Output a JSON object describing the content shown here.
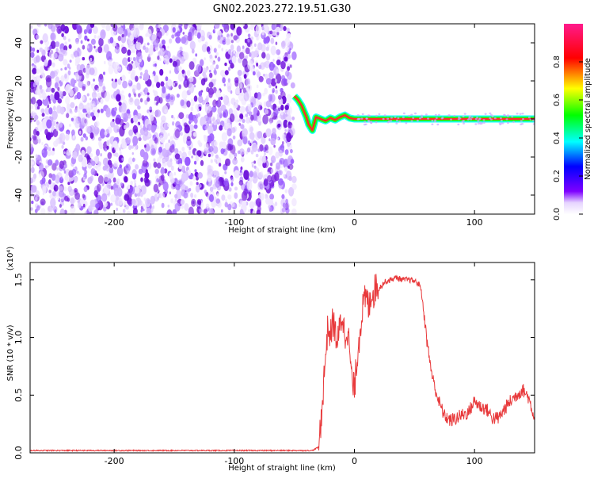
{
  "title": "GN02.2023.272.19.51.G30",
  "colors": {
    "snr_line": "#e8393b",
    "spectrogram_noise": "#7a1fe0",
    "trace_core": "#ff2b2b",
    "trace_edge": "#1aff1a"
  },
  "chart_data": [
    {
      "type": "heatmap",
      "title": "GN02.2023.272.19.51.G30",
      "xlabel": "Height of straight line (km)",
      "ylabel": "Frequency (Hz)",
      "xlim": [
        -270,
        150
      ],
      "ylim": [
        -50,
        50
      ],
      "xticks": [
        -200,
        -100,
        0,
        100
      ],
      "yticks": [
        -40,
        -20,
        0,
        20,
        40
      ],
      "xtick_labels": [
        "-200",
        "-100",
        "0",
        "100"
      ],
      "ytick_labels": [
        "-40",
        "-20",
        "0",
        "20",
        "40"
      ],
      "noise_region_x": [
        -270,
        -50
      ],
      "trace": {
        "name": "frequency trace",
        "x": [
          -50,
          -47,
          -44,
          -42,
          -40,
          -38,
          -35,
          -32,
          -28,
          -24,
          -20,
          -16,
          -12,
          -8,
          -4,
          0,
          20,
          50,
          80,
          110,
          150
        ],
        "y": [
          12,
          10,
          7,
          4,
          1,
          -3,
          -6,
          1,
          0,
          -1,
          0.5,
          -0.5,
          1,
          2,
          0.5,
          0,
          0,
          0,
          0,
          0,
          0
        ]
      },
      "colorbar": {
        "label": "Normalized spectral amplitude",
        "range": [
          0,
          1
        ],
        "ticks": [
          0.0,
          0.2,
          0.4,
          0.6,
          0.8
        ],
        "tick_labels": [
          "0.0",
          "0.2",
          "0.4",
          "0.6",
          "0.8"
        ],
        "colormap": [
          "#ffffff",
          "#7e00ff",
          "#0000ff",
          "#00ffff",
          "#00ff00",
          "#ffff00",
          "#ff0000",
          "#ff0080"
        ]
      },
      "grid": false,
      "legend": "none"
    },
    {
      "type": "line",
      "xlabel": "Height of straight line (km)",
      "ylabel": "SNR (10 * v/v)",
      "scale_label": "(x10⁴)",
      "xlim": [
        -270,
        150
      ],
      "ylim": [
        0,
        1.65
      ],
      "xticks": [
        -200,
        -100,
        0,
        100
      ],
      "yticks": [
        0.0,
        0.5,
        1.0,
        1.5
      ],
      "xtick_labels": [
        "-200",
        "-100",
        "0",
        "100"
      ],
      "ytick_labels": [
        "0.0",
        "0.5",
        "1.0",
        "1.5"
      ],
      "series": [
        {
          "x": [
            -270,
            -250,
            -200,
            -150,
            -100,
            -50,
            -35,
            -30,
            -28,
            -26,
            -24,
            -22,
            -20,
            -18,
            -16,
            -14,
            -12,
            -10,
            -8,
            -6,
            -4,
            -2,
            0,
            2,
            4,
            6,
            8,
            10,
            12,
            14,
            16,
            18,
            20,
            25,
            30,
            35,
            40,
            45,
            50,
            55,
            58,
            60,
            62,
            65,
            70,
            75,
            80,
            85,
            90,
            95,
            100,
            105,
            110,
            115,
            120,
            125,
            130,
            135,
            140,
            145,
            150
          ],
          "y": [
            0.02,
            0.02,
            0.02,
            0.02,
            0.02,
            0.02,
            0.02,
            0.05,
            0.25,
            0.55,
            0.85,
            1.1,
            1.0,
            1.15,
            1.05,
            0.95,
            1.1,
            1.2,
            1.0,
            1.1,
            0.9,
            0.6,
            0.55,
            0.8,
            1.0,
            1.2,
            1.3,
            1.35,
            1.25,
            1.4,
            1.38,
            1.45,
            1.42,
            1.48,
            1.5,
            1.52,
            1.5,
            1.5,
            1.49,
            1.45,
            1.2,
            1.0,
            0.85,
            0.65,
            0.45,
            0.32,
            0.28,
            0.3,
            0.33,
            0.35,
            0.45,
            0.4,
            0.38,
            0.3,
            0.3,
            0.38,
            0.45,
            0.5,
            0.55,
            0.48,
            0.3
          ]
        }
      ],
      "grid": false,
      "legend": "none"
    }
  ]
}
